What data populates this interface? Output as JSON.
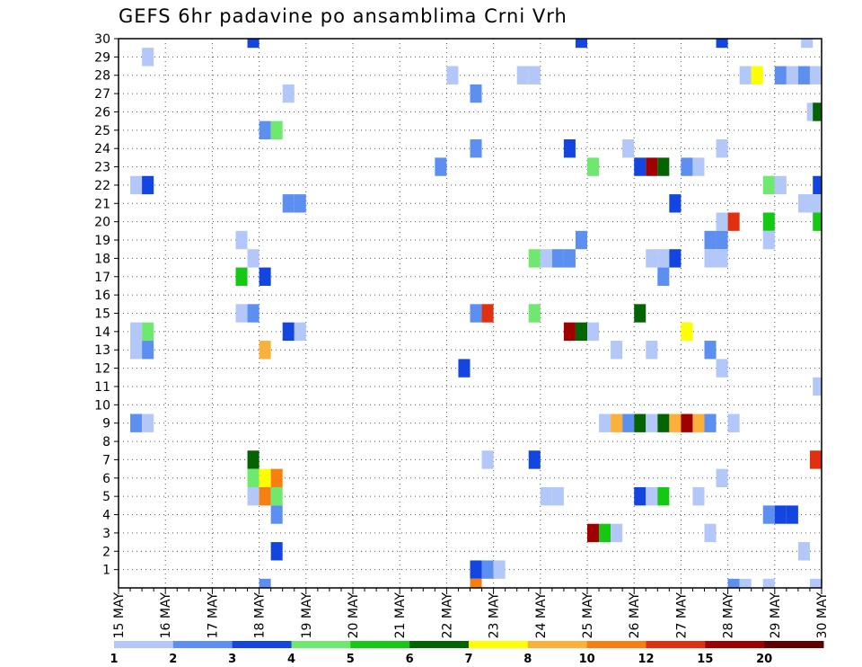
{
  "chart_data": {
    "type": "heatmap",
    "title": "GEFS 6hr padavine po ansamblima Crni Vrh",
    "x_tick_labels": [
      "15 MAY",
      "16 MAY",
      "17 MAY",
      "18 MAY",
      "19 MAY",
      "20 MAY",
      "21 MAY",
      "22 MAY",
      "23 MAY",
      "24 MAY",
      "25 MAY",
      "26 MAY",
      "27 MAY",
      "28 MAY",
      "29 MAY",
      "30 MAY"
    ],
    "y_tick_labels": [
      "1",
      "2",
      "3",
      "4",
      "5",
      "6",
      "7",
      "8",
      "9",
      "10",
      "11",
      "12",
      "13",
      "14",
      "15",
      "16",
      "17",
      "18",
      "19",
      "20",
      "21",
      "22",
      "23",
      "24",
      "25",
      "26",
      "27",
      "28",
      "29",
      "30"
    ],
    "xlim": [
      0,
      60
    ],
    "ylim": [
      0,
      30
    ],
    "x_units": "6-hour steps from 15 MAY 00Z",
    "grid": true,
    "colorbar": {
      "labels": [
        "1",
        "2",
        "3",
        "4",
        "5",
        "6",
        "7",
        "8",
        "10",
        "12",
        "15",
        "20"
      ],
      "colors": [
        "#b3c8f8",
        "#5c8ff0",
        "#1346e0",
        "#6ee86e",
        "#14c814",
        "#046404",
        "#ffff00",
        "#fbb03b",
        "#f77f0f",
        "#e03010",
        "#a00000",
        "#600000"
      ]
    },
    "cells": [
      {
        "x": 11.5,
        "y": 30,
        "c": 2
      },
      {
        "x": 39.5,
        "y": 30,
        "c": 2
      },
      {
        "x": 51.5,
        "y": 30,
        "c": 2
      },
      {
        "x": 58.75,
        "y": 30,
        "c": 0
      },
      {
        "x": 2.5,
        "y": 29,
        "c": 0
      },
      {
        "x": 28.5,
        "y": 28,
        "c": 0
      },
      {
        "x": 34.5,
        "y": 28,
        "c": 0
      },
      {
        "x": 35.5,
        "y": 28,
        "c": 0
      },
      {
        "x": 53.5,
        "y": 28,
        "c": 0
      },
      {
        "x": 54.5,
        "y": 28,
        "c": 6
      },
      {
        "x": 56.5,
        "y": 28,
        "c": 1
      },
      {
        "x": 57.5,
        "y": 28,
        "c": 0
      },
      {
        "x": 58.5,
        "y": 28,
        "c": 1
      },
      {
        "x": 59.5,
        "y": 28,
        "c": 0
      },
      {
        "x": 14.5,
        "y": 27,
        "c": 0
      },
      {
        "x": 30.5,
        "y": 27,
        "c": 1
      },
      {
        "x": 59.25,
        "y": 26,
        "c": 0
      },
      {
        "x": 59.75,
        "y": 26,
        "c": 5
      },
      {
        "x": 12.5,
        "y": 25,
        "c": 1
      },
      {
        "x": 13.5,
        "y": 25,
        "c": 3
      },
      {
        "x": 30.5,
        "y": 24,
        "c": 1
      },
      {
        "x": 38.5,
        "y": 24,
        "c": 2
      },
      {
        "x": 43.5,
        "y": 24,
        "c": 0
      },
      {
        "x": 51.5,
        "y": 24,
        "c": 0
      },
      {
        "x": 27.5,
        "y": 23,
        "c": 1
      },
      {
        "x": 40.5,
        "y": 23,
        "c": 3
      },
      {
        "x": 44.5,
        "y": 23,
        "c": 2
      },
      {
        "x": 45.5,
        "y": 23,
        "c": 10
      },
      {
        "x": 46.5,
        "y": 23,
        "c": 5
      },
      {
        "x": 48.5,
        "y": 23,
        "c": 1
      },
      {
        "x": 49.5,
        "y": 23,
        "c": 0
      },
      {
        "x": 1.5,
        "y": 22,
        "c": 0
      },
      {
        "x": 2.5,
        "y": 22,
        "c": 2
      },
      {
        "x": 55.5,
        "y": 22,
        "c": 3
      },
      {
        "x": 56.5,
        "y": 22,
        "c": 0
      },
      {
        "x": 59.75,
        "y": 22,
        "c": 2
      },
      {
        "x": 14.5,
        "y": 21,
        "c": 1
      },
      {
        "x": 15.5,
        "y": 21,
        "c": 1
      },
      {
        "x": 47.5,
        "y": 21,
        "c": 2
      },
      {
        "x": 58.5,
        "y": 21,
        "c": 0
      },
      {
        "x": 59.5,
        "y": 21,
        "c": 0
      },
      {
        "x": 51.5,
        "y": 20,
        "c": 0
      },
      {
        "x": 52.5,
        "y": 20,
        "c": 9
      },
      {
        "x": 55.5,
        "y": 20,
        "c": 4
      },
      {
        "x": 59.75,
        "y": 20,
        "c": 4
      },
      {
        "x": 10.5,
        "y": 19,
        "c": 0
      },
      {
        "x": 39.5,
        "y": 19,
        "c": 1
      },
      {
        "x": 50.5,
        "y": 19,
        "c": 1
      },
      {
        "x": 51.5,
        "y": 19,
        "c": 1
      },
      {
        "x": 55.5,
        "y": 19,
        "c": 0
      },
      {
        "x": 11.5,
        "y": 18,
        "c": 0
      },
      {
        "x": 35.5,
        "y": 18,
        "c": 3
      },
      {
        "x": 36.5,
        "y": 18,
        "c": 0
      },
      {
        "x": 37.5,
        "y": 18,
        "c": 1
      },
      {
        "x": 38.5,
        "y": 18,
        "c": 1
      },
      {
        "x": 45.5,
        "y": 18,
        "c": 0
      },
      {
        "x": 46.5,
        "y": 18,
        "c": 0
      },
      {
        "x": 47.5,
        "y": 18,
        "c": 2
      },
      {
        "x": 50.5,
        "y": 18,
        "c": 0
      },
      {
        "x": 51.5,
        "y": 18,
        "c": 0
      },
      {
        "x": 10.5,
        "y": 17,
        "c": 4
      },
      {
        "x": 12.5,
        "y": 17,
        "c": 2
      },
      {
        "x": 46.5,
        "y": 17,
        "c": 1
      },
      {
        "x": 10.5,
        "y": 15,
        "c": 0
      },
      {
        "x": 11.5,
        "y": 15,
        "c": 1
      },
      {
        "x": 30.5,
        "y": 15,
        "c": 1
      },
      {
        "x": 31.5,
        "y": 15,
        "c": 9
      },
      {
        "x": 35.5,
        "y": 15,
        "c": 3
      },
      {
        "x": 44.5,
        "y": 15,
        "c": 5
      },
      {
        "x": 1.5,
        "y": 14,
        "c": 0
      },
      {
        "x": 2.5,
        "y": 14,
        "c": 3
      },
      {
        "x": 14.5,
        "y": 14,
        "c": 2
      },
      {
        "x": 15.5,
        "y": 14,
        "c": 0
      },
      {
        "x": 38.5,
        "y": 14,
        "c": 10
      },
      {
        "x": 39.5,
        "y": 14,
        "c": 5
      },
      {
        "x": 40.5,
        "y": 14,
        "c": 0
      },
      {
        "x": 48.5,
        "y": 14,
        "c": 6
      },
      {
        "x": 1.5,
        "y": 13,
        "c": 0
      },
      {
        "x": 2.5,
        "y": 13,
        "c": 1
      },
      {
        "x": 12.5,
        "y": 13,
        "c": 7
      },
      {
        "x": 42.5,
        "y": 13,
        "c": 0
      },
      {
        "x": 45.5,
        "y": 13,
        "c": 0
      },
      {
        "x": 50.5,
        "y": 13,
        "c": 1
      },
      {
        "x": 29.5,
        "y": 12,
        "c": 2
      },
      {
        "x": 51.5,
        "y": 12,
        "c": 0
      },
      {
        "x": 59.75,
        "y": 11,
        "c": 0
      },
      {
        "x": 1.5,
        "y": 9,
        "c": 1
      },
      {
        "x": 2.5,
        "y": 9,
        "c": 0
      },
      {
        "x": 41.5,
        "y": 9,
        "c": 0
      },
      {
        "x": 42.5,
        "y": 9,
        "c": 7
      },
      {
        "x": 43.5,
        "y": 9,
        "c": 1
      },
      {
        "x": 44.5,
        "y": 9,
        "c": 5
      },
      {
        "x": 45.5,
        "y": 9,
        "c": 0
      },
      {
        "x": 46.5,
        "y": 9,
        "c": 5
      },
      {
        "x": 47.5,
        "y": 9,
        "c": 7
      },
      {
        "x": 48.5,
        "y": 9,
        "c": 10
      },
      {
        "x": 49.5,
        "y": 9,
        "c": 7
      },
      {
        "x": 50.5,
        "y": 9,
        "c": 1
      },
      {
        "x": 52.5,
        "y": 9,
        "c": 0
      },
      {
        "x": 11.5,
        "y": 7,
        "c": 5
      },
      {
        "x": 31.5,
        "y": 7,
        "c": 0
      },
      {
        "x": 35.5,
        "y": 7,
        "c": 2
      },
      {
        "x": 59.5,
        "y": 7,
        "c": 9
      },
      {
        "x": 11.5,
        "y": 6,
        "c": 3
      },
      {
        "x": 12.5,
        "y": 6,
        "c": 6
      },
      {
        "x": 13.5,
        "y": 6,
        "c": 8
      },
      {
        "x": 51.5,
        "y": 6,
        "c": 0
      },
      {
        "x": 11.5,
        "y": 5,
        "c": 0
      },
      {
        "x": 12.5,
        "y": 5,
        "c": 8
      },
      {
        "x": 13.5,
        "y": 5,
        "c": 3
      },
      {
        "x": 36.5,
        "y": 5,
        "c": 0
      },
      {
        "x": 37.5,
        "y": 5,
        "c": 0
      },
      {
        "x": 44.5,
        "y": 5,
        "c": 2
      },
      {
        "x": 45.5,
        "y": 5,
        "c": 0
      },
      {
        "x": 46.5,
        "y": 5,
        "c": 4
      },
      {
        "x": 49.5,
        "y": 5,
        "c": 0
      },
      {
        "x": 13.5,
        "y": 4,
        "c": 1
      },
      {
        "x": 55.5,
        "y": 4,
        "c": 1
      },
      {
        "x": 56.5,
        "y": 4,
        "c": 2
      },
      {
        "x": 57.5,
        "y": 4,
        "c": 2
      },
      {
        "x": 40.5,
        "y": 3,
        "c": 10
      },
      {
        "x": 41.5,
        "y": 3,
        "c": 4
      },
      {
        "x": 42.5,
        "y": 3,
        "c": 0
      },
      {
        "x": 50.5,
        "y": 3,
        "c": 0
      },
      {
        "x": 13.5,
        "y": 2,
        "c": 2
      },
      {
        "x": 58.5,
        "y": 2,
        "c": 0
      },
      {
        "x": 30.5,
        "y": 1,
        "c": 2
      },
      {
        "x": 31.5,
        "y": 1,
        "c": 1
      },
      {
        "x": 32.5,
        "y": 1,
        "c": 0
      },
      {
        "x": 12.5,
        "y": 0,
        "c": 1
      },
      {
        "x": 30.5,
        "y": 0,
        "c": 8
      },
      {
        "x": 52.5,
        "y": 0,
        "c": 1
      },
      {
        "x": 53.5,
        "y": 0,
        "c": 0
      },
      {
        "x": 55.5,
        "y": 0,
        "c": 0
      },
      {
        "x": 59.5,
        "y": 0,
        "c": 0
      }
    ]
  }
}
